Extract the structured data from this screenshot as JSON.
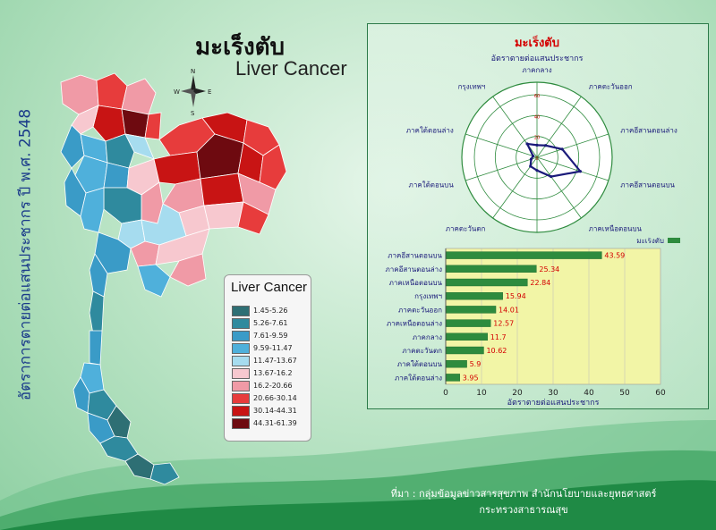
{
  "title_th": "มะเร็งตับ",
  "title_en": "Liver Cancer",
  "vertical_label": "อัตราการตายต่อแสนประชากร ปี พ.ศ. 2548",
  "compass": {
    "n": "N",
    "s": "S",
    "e": "E",
    "w": "W"
  },
  "legend": {
    "title": "Liver Cancer",
    "items": [
      {
        "label": "1.45-5.26",
        "color": "#2e6f74"
      },
      {
        "label": "5.26-7.61",
        "color": "#2f8a9e"
      },
      {
        "label": "7.61-9.59",
        "color": "#3a9bc7"
      },
      {
        "label": "9.59-11.47",
        "color": "#4fb0db"
      },
      {
        "label": "11.47-13.67",
        "color": "#a6dcef"
      },
      {
        "label": "13.67-16.2",
        "color": "#f7c8cf"
      },
      {
        "label": "16.2-20.66",
        "color": "#f09aa6"
      },
      {
        "label": "20.66-30.14",
        "color": "#e73c3c"
      },
      {
        "label": "30.14-44.31",
        "color": "#c81414"
      },
      {
        "label": "44.31-61.39",
        "color": "#6e0a10"
      }
    ]
  },
  "radar": {
    "title": "มะเร็งตับ",
    "subtitle": "อัตราตายต่อแสนประชากร",
    "tick_labels": [
      "60",
      "40",
      "20",
      "0"
    ]
  },
  "bar": {
    "legend_label": "มะเร็งตับ",
    "xlabel": "อัตราตายต่อแสนประชากร"
  },
  "source": {
    "line1": "ที่มา : กลุ่มข้อมูลข่าวสารสุขภาพ สำนักนโยบายและยุทธศาสตร์",
    "line2": "กระทรวงสาธารณสุข"
  },
  "chart_data": [
    {
      "type": "radar",
      "title": "มะเร็งตับ",
      "subtitle": "อัตราตายต่อแสนประชากร",
      "categories": [
        "ภาคกลาง",
        "ภาคตะวันออก",
        "ภาคอีสานตอนล่าง",
        "ภาคอีสานตอนบน",
        "ภาคเหนือตอนบน",
        "ภาคเหนือตอนล่าง",
        "ภาคตะวันตก",
        "ภาคใต้ตอนบน",
        "ภาคใต้ตอนล่าง",
        "กรุงเทพฯ"
      ],
      "values": [
        11.7,
        14.01,
        25.34,
        43.59,
        22.84,
        12.57,
        10.62,
        5.9,
        3.95,
        15.94
      ],
      "rlim": [
        0,
        60
      ],
      "grid": true
    },
    {
      "type": "bar",
      "orientation": "horizontal",
      "categories": [
        "ภาคอีสานตอนบน",
        "ภาคอีสานตอนล่าง",
        "ภาคเหนือตอนบน",
        "กรุงเทพฯ",
        "ภาคตะวันออก",
        "ภาคเหนือตอนล่าง",
        "ภาคกลาง",
        "ภาคตะวันตก",
        "ภาคใต้ตอนบน",
        "ภาคใต้ตอนล่าง"
      ],
      "values": [
        43.59,
        25.34,
        22.84,
        15.94,
        14.01,
        12.57,
        11.7,
        10.62,
        5.9,
        3.95
      ],
      "series_name": "มะเร็งตับ",
      "xlabel": "อัตราตายต่อแสนประชากร",
      "xlim": [
        0,
        60
      ],
      "xticks": [
        0,
        10,
        20,
        30,
        40,
        50,
        60
      ],
      "legend": "top-right",
      "grid": true
    }
  ]
}
